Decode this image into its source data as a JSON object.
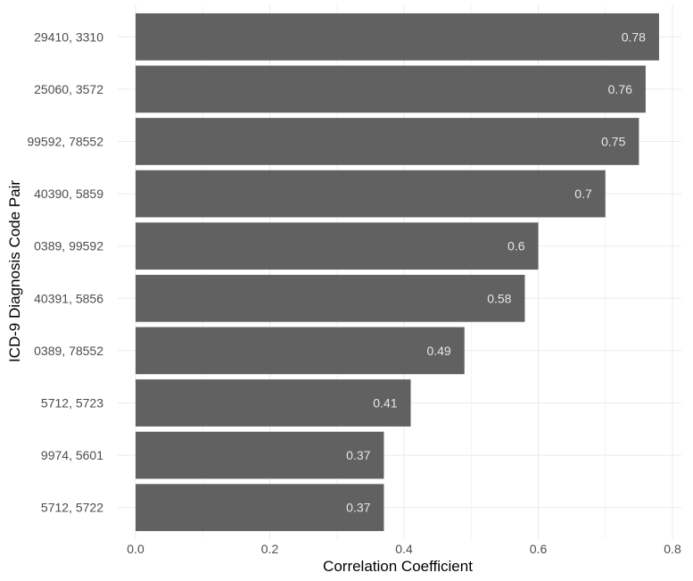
{
  "chart_data": {
    "type": "bar",
    "orientation": "horizontal",
    "title": "",
    "xlabel": "Correlation Coefficient",
    "ylabel": "ICD-9 Diagnosis Code Pair",
    "categories": [
      "29410, 3310",
      "25060, 3572",
      "99592, 78552",
      "40390, 5859",
      "0389, 99592",
      "40391, 5856",
      "0389, 78552",
      "5712, 5723",
      "9974, 5601",
      "5712, 5722"
    ],
    "values": [
      0.78,
      0.76,
      0.75,
      0.7,
      0.6,
      0.58,
      0.49,
      0.41,
      0.37,
      0.37
    ],
    "value_labels": [
      "0.78",
      "0.76",
      "0.75",
      "0.7",
      "0.6",
      "0.58",
      "0.49",
      "0.41",
      "0.37",
      "0.37"
    ],
    "xlim": [
      0,
      0.8
    ],
    "x_ticks": [
      0.0,
      0.2,
      0.4,
      0.6,
      0.8
    ],
    "x_tick_labels": [
      "0.0",
      "0.2",
      "0.4",
      "0.6",
      "0.8"
    ],
    "grid": true,
    "legend": "none",
    "colors": {
      "bar": "#595959",
      "bar_label": "#e6e6e6",
      "grid": "#ebebeb",
      "background": "#ffffff"
    }
  }
}
